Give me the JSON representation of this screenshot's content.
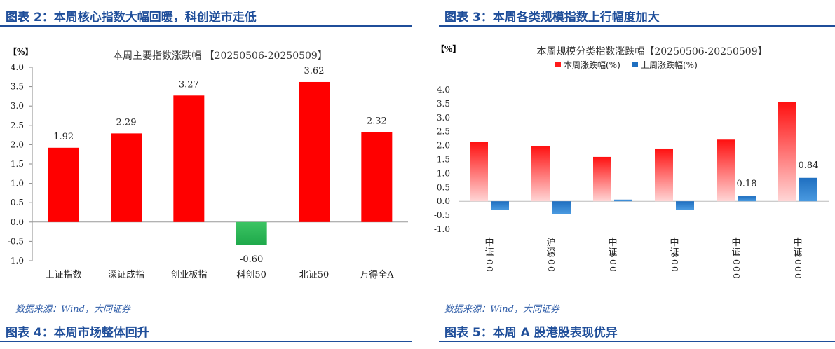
{
  "left": {
    "fig_title": "图表 2：本周核心指数大幅回暖，科创逆市走低",
    "source": "数据来源：Wind，大同证券",
    "next_fig_title": "图表 4：本周市场整体回升"
  },
  "right": {
    "fig_title": "图表 3：本周各类规模指数上行幅度加大",
    "source": "数据来源：Wind，大同证券",
    "next_fig_title": "图表 5：本周 A 股港股表现优异"
  },
  "chart_data": [
    {
      "type": "bar",
      "title": "本周主要指数涨跌幅 【20250506-20250509】",
      "unit_label": "【%】",
      "categories": [
        "上证指数",
        "深证成指",
        "创业板指",
        "科创50",
        "北证50",
        "万得全A"
      ],
      "values": [
        1.92,
        2.29,
        3.27,
        -0.6,
        3.62,
        2.32
      ],
      "data_labels": [
        "1.92",
        "2.29",
        "3.27",
        "-0.60",
        "3.62",
        "2.32"
      ],
      "ylim": [
        -1.0,
        4.0
      ],
      "yticks": [
        "4.0",
        "3.5",
        "3.0",
        "2.5",
        "2.0",
        "1.5",
        "1.0",
        "0.5",
        "0.0",
        "-0.5",
        "-1.0"
      ],
      "colors": {
        "positive": "#ff0000",
        "negative": "#22b14c"
      },
      "grid": false,
      "legend": "none"
    },
    {
      "type": "bar",
      "title": "本周规模分类指数涨跌幅【20250506-20250509】",
      "unit_label": "【%】",
      "categories": [
        "中证100",
        "沪深300",
        "中证500",
        "中证800",
        "中证1000",
        "中证2000"
      ],
      "series": [
        {
          "name": "本周涨跌幅(%)",
          "values": [
            2.13,
            1.99,
            1.59,
            1.89,
            2.21,
            3.56
          ],
          "color": "#ff1a1a"
        },
        {
          "name": "上周涨跌幅(%)",
          "values": [
            -0.32,
            -0.45,
            0.06,
            -0.3,
            0.18,
            0.84
          ],
          "color": "#1f6fc0"
        }
      ],
      "data_labels": [
        {
          "series": 1,
          "index": 4,
          "text": "0.18"
        },
        {
          "series": 1,
          "index": 5,
          "text": "0.84"
        }
      ],
      "ylim": [
        -1.0,
        4.0
      ],
      "yticks": [
        "4.0",
        "3.5",
        "3.0",
        "2.5",
        "2.0",
        "1.5",
        "1.0",
        "0.5",
        "0.0",
        "-0.5",
        "-1.0"
      ],
      "grid": false,
      "legend": "top-center"
    }
  ]
}
